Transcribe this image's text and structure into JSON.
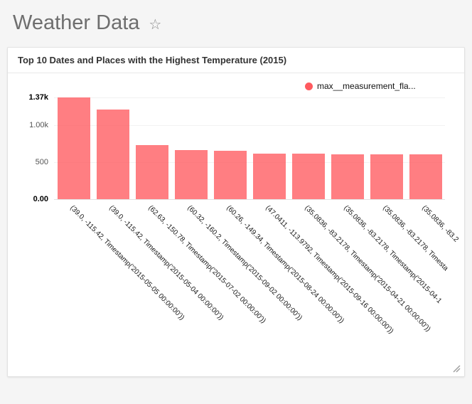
{
  "header": {
    "title": "Weather Data"
  },
  "icons": {
    "favorite_star": "☆"
  },
  "chart_data": {
    "type": "bar",
    "title": "Top 10 Dates and Places with the Highest Temperature (2015)",
    "legend": [
      "max__measurement_fla..."
    ],
    "legend_position": "top-right",
    "series_color": "#ff5a5f",
    "categories": [
      "(39.0, -115.42, Timestamp('2015-05-05 00:00:00'))",
      "(39.0, -115.42, Timestamp('2015-05-04 00:00:00'))",
      "(62.63, -150.78, Timestamp('2015-07-02 00:00:00'))",
      "(60.32, -160.2, Timestamp('2015-09-02 00:00:00'))",
      "(60.26, -149.34, Timestamp('2015-08-24 00:00:00'))",
      "(47.0411, -113.9792, Timestamp('2015-09-16 00:00:00'))",
      "(35.0836, -83.2178, Timestamp('2015-04-21 00:00:00'))",
      "(35.0836, -83.2178, Timestamp('2015-04-1",
      "(35.0836, -83.2178, Timesta",
      "(35.0836, -83.2"
    ],
    "values": [
      1370,
      1210,
      725,
      665,
      650,
      615,
      610,
      607,
      604,
      600
    ],
    "ylim": [
      0,
      1370
    ],
    "yticks": [
      {
        "label": "0.00",
        "value": 0,
        "bold": true
      },
      {
        "label": "500",
        "value": 500,
        "bold": false
      },
      {
        "label": "1.00k",
        "value": 1000,
        "bold": false
      },
      {
        "label": "1.37k",
        "value": 1370,
        "bold": true
      }
    ],
    "x_label_rotation": 45,
    "grid": false
  }
}
